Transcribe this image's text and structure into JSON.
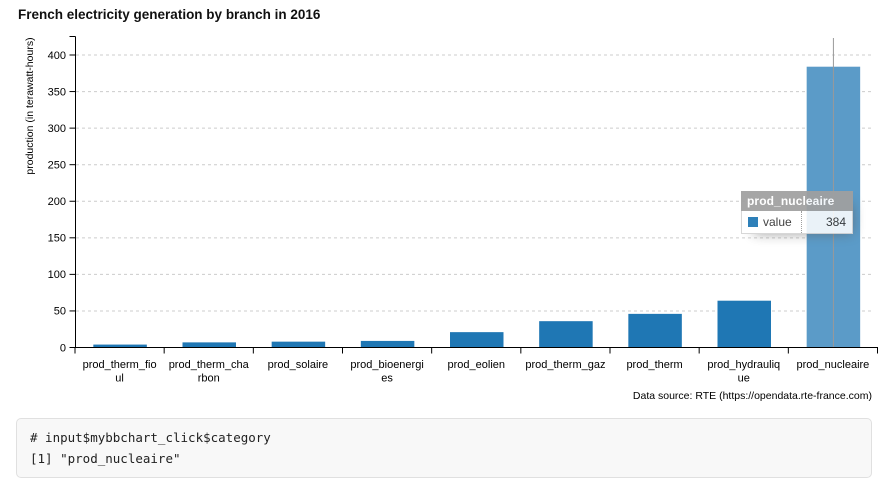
{
  "page": {
    "title": "French electricity generation by branch in 2016"
  },
  "chart_data": {
    "type": "bar",
    "title": "French electricity generation by branch in 2016",
    "xlabel": "",
    "ylabel": "production (in terawatt-hours)",
    "categories": [
      "prod_therm_fioul",
      "prod_therm_charbon",
      "prod_solaire",
      "prod_bioenergies",
      "prod_eolien",
      "prod_therm_gaz",
      "prod_therm",
      "prod_hydraulique",
      "prod_nucleaire"
    ],
    "category_label_lines": [
      [
        "prod_therm_fio",
        "ul"
      ],
      [
        "prod_therm_cha",
        "rbon"
      ],
      [
        "prod_solaire"
      ],
      [
        "prod_bioenergi",
        "es"
      ],
      [
        "prod_eolien"
      ],
      [
        "prod_therm_gaz"
      ],
      [
        "prod_therm"
      ],
      [
        "prod_hydrauliq",
        "ue"
      ],
      [
        "prod_nucleaire"
      ]
    ],
    "values": [
      4,
      7,
      8,
      9,
      21,
      36,
      46,
      64,
      384
    ],
    "series_name": "value",
    "y_ticks": [
      0,
      50,
      100,
      150,
      200,
      250,
      300,
      350,
      400
    ],
    "ylim": [
      0,
      425
    ],
    "grid": "horizontal-dashed",
    "legend_position": "none",
    "bar_color": "#1f77b4",
    "selected_bar_color": "#5b9bc8",
    "selected_index": 8,
    "focus_line_color": "#999999",
    "gridline_color": "#cccccc",
    "axis_color": "#000000"
  },
  "tooltip": {
    "title": "prod_nucleaire",
    "series_label": "value",
    "value": "384",
    "swatch_color": "#1f77b4"
  },
  "footer": {
    "data_source": "Data source: RTE (https://opendata.rte-france.com)"
  },
  "console": {
    "line1": "# input$mybbchart_click$category",
    "line2": "[1] \"prod_nucleaire\""
  }
}
